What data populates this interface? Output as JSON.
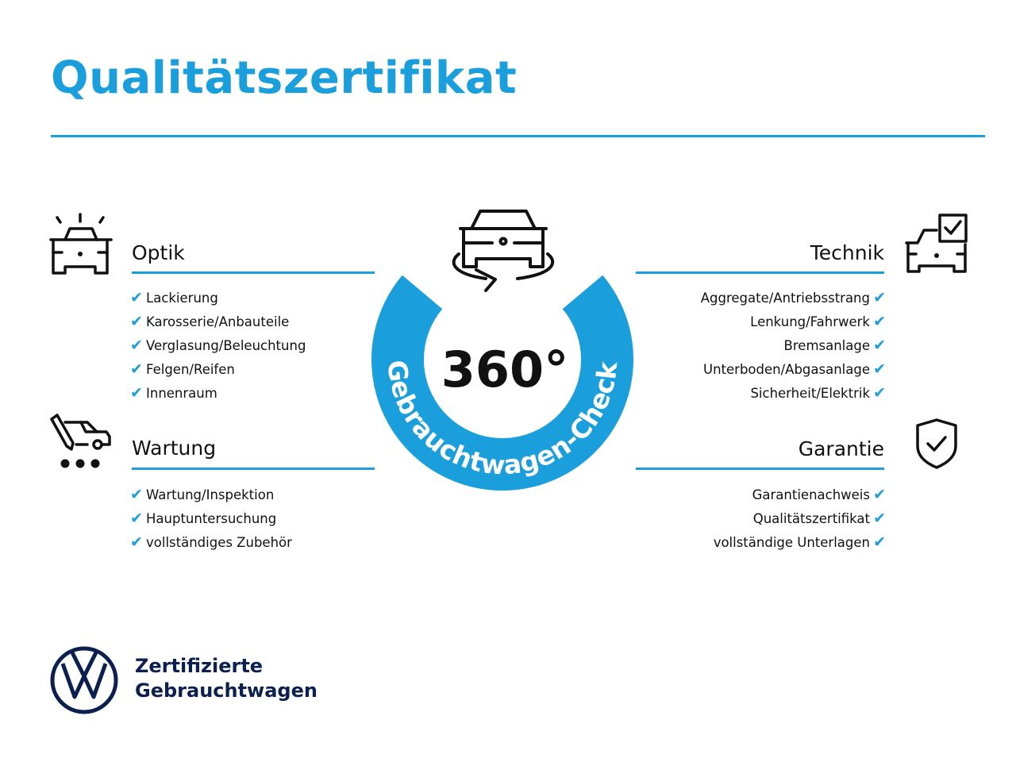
{
  "title": "Qualitätszertifikat",
  "colors": {
    "accent": "#1a9fdc",
    "brand_navy": "#0c2050",
    "text": "#111111"
  },
  "center": {
    "value": "360°",
    "ring_text": "Gebrauchtwagen-Check",
    "icon": "car-rotate-icon"
  },
  "sections": {
    "optik": {
      "title": "Optik",
      "icon": "car-lights-icon",
      "items": [
        "Lackierung",
        "Karosserie/Anbauteile",
        "Verglasung/Beleuchtung",
        "Felgen/Reifen",
        "Innenraum"
      ]
    },
    "wartung": {
      "title": "Wartung",
      "icon": "service-wrench-icon",
      "items": [
        "Wartung/Inspektion",
        "Hauptuntersuchung",
        "vollständiges Zubehör"
      ]
    },
    "technik": {
      "title": "Technik",
      "icon": "car-checklist-icon",
      "items": [
        "Aggregate/Antriebsstrang",
        "Lenkung/Fahrwerk",
        "Bremsanlage",
        "Unterboden/Abgasanlage",
        "Sicherheit/Elektrik"
      ]
    },
    "garantie": {
      "title": "Garantie",
      "icon": "shield-check-icon",
      "items": [
        "Garantienachweis",
        "Qualitätszertifikat",
        "vollständige Unterlagen"
      ]
    }
  },
  "check_glyph": "✔",
  "footer": {
    "line1": "Zertifizierte",
    "line2": "Gebrauchtwagen",
    "logo": "VW"
  }
}
